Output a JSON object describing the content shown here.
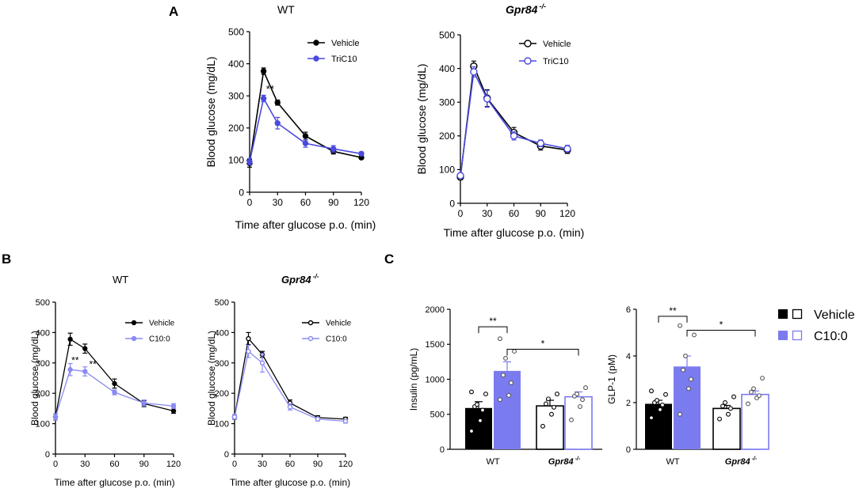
{
  "panel_labels": [
    "A",
    "B",
    "C"
  ],
  "colors": {
    "vehicle": "#000000",
    "tric10": "#4a4ae0",
    "c10": "#7b7bf0",
    "c10_light": "#8a8af2"
  },
  "chart_data": [
    {
      "id": "A1",
      "type": "line",
      "title": "WT",
      "title_italic": false,
      "title_superscript": "",
      "xlabel": "Time after glucose p.o. (min)",
      "ylabel": "Blood glucose (mg/dL)",
      "x": [
        0,
        15,
        30,
        60,
        90,
        120
      ],
      "xticks": [
        "0",
        "30",
        "60",
        "90",
        "120"
      ],
      "yticks": [
        "0",
        "100",
        "200",
        "300",
        "400",
        "500"
      ],
      "xlim": [
        0,
        120
      ],
      "ylim": [
        0,
        500
      ],
      "series": [
        {
          "name": "Vehicle",
          "values": [
            90,
            377,
            279,
            175,
            127,
            108
          ],
          "err": [
            12,
            10,
            8,
            12,
            8,
            5
          ]
        },
        {
          "name": "TriC10",
          "values": [
            95,
            292,
            215,
            152,
            135,
            120
          ],
          "err": [
            10,
            10,
            18,
            12,
            10,
            5
          ]
        }
      ],
      "annotations": [
        {
          "text": "**",
          "x": 22,
          "y": 310
        }
      ]
    },
    {
      "id": "A2",
      "type": "line",
      "title": "Gpr84",
      "title_italic": true,
      "title_superscript": "-/-",
      "xlabel": "Time after glucose p.o. (min)",
      "ylabel": "Blood glucose (mg/dL)",
      "x": [
        0,
        15,
        30,
        60,
        90,
        120
      ],
      "xticks": [
        "0",
        "30",
        "60",
        "90",
        "120"
      ],
      "yticks": [
        "0",
        "100",
        "200",
        "300",
        "400",
        "500"
      ],
      "xlim": [
        0,
        120
      ],
      "ylim": [
        0,
        500
      ],
      "series": [
        {
          "name": "Vehicle",
          "values": [
            78,
            407,
            312,
            210,
            170,
            158
          ],
          "err": [
            8,
            15,
            25,
            15,
            12,
            10
          ]
        },
        {
          "name": "TriC10",
          "values": [
            82,
            390,
            310,
            200,
            178,
            162
          ],
          "err": [
            8,
            15,
            25,
            12,
            10,
            10
          ]
        }
      ],
      "annotations": []
    },
    {
      "id": "B1",
      "type": "line",
      "title": "WT",
      "title_italic": false,
      "title_superscript": "",
      "xlabel": "Time after glucose p.o. (min)",
      "ylabel": "Blood glucose (mg/dL)",
      "x": [
        0,
        15,
        30,
        60,
        90,
        120
      ],
      "xticks": [
        "0",
        "30",
        "60",
        "90",
        "120"
      ],
      "yticks": [
        "0",
        "100",
        "200",
        "300",
        "400",
        "500"
      ],
      "xlim": [
        0,
        120
      ],
      "ylim": [
        0,
        500
      ],
      "series": [
        {
          "name": "Vehicle",
          "values": [
            122,
            378,
            347,
            232,
            166,
            142
          ],
          "err": [
            10,
            20,
            15,
            15,
            10,
            8
          ]
        },
        {
          "name": "C10:0",
          "values": [
            122,
            278,
            272,
            203,
            168,
            158
          ],
          "err": [
            10,
            20,
            15,
            8,
            10,
            8
          ]
        }
      ],
      "annotations": [
        {
          "text": "**",
          "x": 20,
          "y": 298
        },
        {
          "text": "**",
          "x": 38,
          "y": 285
        }
      ]
    },
    {
      "id": "B2",
      "type": "line",
      "title": "Gpr84",
      "title_italic": true,
      "title_superscript": "-/-",
      "xlabel": "Time after glucose p.o. (min)",
      "ylabel": "Blood glucose (mg/dL)",
      "x": [
        0,
        15,
        30,
        60,
        90,
        120
      ],
      "xticks": [
        "0",
        "30",
        "60",
        "90",
        "120"
      ],
      "yticks": [
        "0",
        "100",
        "200",
        "300",
        "400",
        "500"
      ],
      "xlim": [
        0,
        120
      ],
      "ylim": [
        0,
        500
      ],
      "series": [
        {
          "name": "Vehicle",
          "values": [
            122,
            380,
            328,
            168,
            120,
            115
          ],
          "err": [
            8,
            20,
            10,
            10,
            6,
            6
          ]
        },
        {
          "name": "C10:0",
          "values": [
            122,
            338,
            300,
            155,
            115,
            108
          ],
          "err": [
            8,
            20,
            30,
            10,
            6,
            6
          ]
        }
      ],
      "annotations": []
    },
    {
      "id": "C1",
      "type": "bar",
      "ylabel": "Insulin (pg/mL)",
      "yticks": [
        "0",
        "500",
        "1000",
        "1500",
        "2000"
      ],
      "ylim": [
        0,
        2000
      ],
      "groups": [
        {
          "label": "WT",
          "italic": false,
          "sup": ""
        },
        {
          "label": "Gpr84",
          "italic": true,
          "sup": "-/-"
        }
      ],
      "bars": [
        {
          "group": 0,
          "series": "Vehicle",
          "value": 590,
          "err": 90,
          "points": [
            260,
            410,
            560,
            610,
            640,
            790,
            820
          ]
        },
        {
          "group": 0,
          "series": "C10:0",
          "value": 1120,
          "err": 130,
          "points": [
            710,
            770,
            950,
            1060,
            1300,
            1400,
            1580
          ]
        },
        {
          "group": 1,
          "series": "Vehicle",
          "value": 620,
          "err": 80,
          "points": [
            330,
            500,
            600,
            650,
            720,
            790
          ]
        },
        {
          "group": 1,
          "series": "C10:0",
          "value": 750,
          "err": 70,
          "points": [
            420,
            610,
            710,
            760,
            790,
            880
          ]
        }
      ],
      "significance": [
        {
          "text": "**",
          "from": 0,
          "to": 1,
          "y": 1750
        },
        {
          "text": "*",
          "from": 1,
          "to": 3,
          "y": 1430
        }
      ]
    },
    {
      "id": "C2",
      "type": "bar",
      "ylabel": "GLP-1 (pM)",
      "yticks": [
        "0",
        "2",
        "4",
        "6"
      ],
      "ylim": [
        0,
        6
      ],
      "groups": [
        {
          "label": "WT",
          "italic": false,
          "sup": ""
        },
        {
          "label": "Gpr84",
          "italic": true,
          "sup": "-/-"
        }
      ],
      "bars": [
        {
          "group": 0,
          "series": "Vehicle",
          "value": 1.95,
          "err": 0.15,
          "points": [
            1.35,
            1.7,
            1.9,
            2.0,
            2.1,
            2.35,
            2.5
          ]
        },
        {
          "group": 0,
          "series": "C10:0",
          "value": 3.55,
          "err": 0.45,
          "points": [
            1.5,
            2.6,
            3.0,
            3.4,
            4.0,
            4.9,
            5.3
          ]
        },
        {
          "group": 1,
          "series": "Vehicle",
          "value": 1.75,
          "err": 0.13,
          "points": [
            1.3,
            1.5,
            1.75,
            1.85,
            2.0,
            2.25
          ]
        },
        {
          "group": 1,
          "series": "C10:0",
          "value": 2.35,
          "err": 0.15,
          "points": [
            1.95,
            2.2,
            2.3,
            2.45,
            2.6,
            3.05
          ]
        }
      ],
      "significance": [
        {
          "text": "**",
          "from": 0,
          "to": 1,
          "y": 5.7
        },
        {
          "text": "*",
          "from": 1,
          "to": 3,
          "y": 5.1
        }
      ]
    }
  ],
  "legend_C": {
    "items": [
      "Vehicle",
      "C10:0"
    ]
  }
}
